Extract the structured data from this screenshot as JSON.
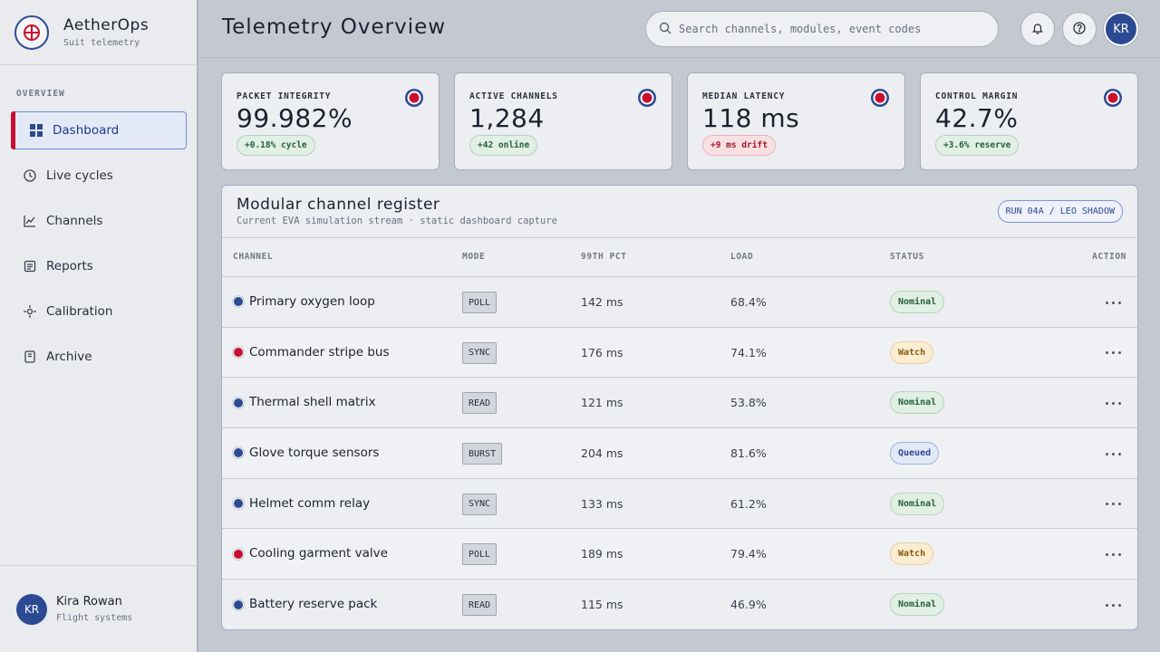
{
  "brand": {
    "name": "AetherOps",
    "subtitle": "Suit telemetry"
  },
  "nav": {
    "section_label": "OVERVIEW",
    "items": [
      {
        "label": "Dashboard",
        "icon": "grid-icon",
        "active": true
      },
      {
        "label": "Live cycles",
        "icon": "clock-icon"
      },
      {
        "label": "Channels",
        "icon": "chart-line-icon"
      },
      {
        "label": "Reports",
        "icon": "report-icon"
      },
      {
        "label": "Calibration",
        "icon": "crosshair-icon"
      },
      {
        "label": "Archive",
        "icon": "archive-icon"
      }
    ]
  },
  "user": {
    "initials": "KR",
    "name": "Kira Rowan",
    "role": "Flight systems"
  },
  "header": {
    "title": "Telemetry Overview",
    "search_placeholder": "Search channels, modules, event codes",
    "avatar_initials": "KR"
  },
  "kpis": [
    {
      "label": "PACKET INTEGRITY",
      "value": "99.982%",
      "badge": "+0.18% cycle",
      "tone": "green"
    },
    {
      "label": "ACTIVE CHANNELS",
      "value": "1,284",
      "badge": "+42 online",
      "tone": "green"
    },
    {
      "label": "MEDIAN LATENCY",
      "value": "118 ms",
      "badge": "+9 ms drift",
      "tone": "red"
    },
    {
      "label": "CONTROL MARGIN",
      "value": "42.7%",
      "badge": "+3.6% reserve",
      "tone": "green"
    }
  ],
  "register": {
    "title": "Modular channel register",
    "subtitle": "Current EVA simulation stream · static dashboard capture",
    "run_chip": "RUN 04A / LEO SHADOW",
    "columns": [
      "CHANNEL",
      "MODE",
      "99TH PCT",
      "LOAD",
      "STATUS",
      "ACTION"
    ],
    "rows": [
      {
        "channel": "Primary oxygen loop",
        "dot": "blue",
        "mode": "POLL",
        "pct": "142 ms",
        "load": "68.4%",
        "status": "Nominal"
      },
      {
        "channel": "Commander stripe bus",
        "dot": "red",
        "mode": "SYNC",
        "pct": "176 ms",
        "load": "74.1%",
        "status": "Watch"
      },
      {
        "channel": "Thermal shell matrix",
        "dot": "blue",
        "mode": "READ",
        "pct": "121 ms",
        "load": "53.8%",
        "status": "Nominal"
      },
      {
        "channel": "Glove torque sensors",
        "dot": "blue",
        "mode": "BURST",
        "pct": "204 ms",
        "load": "81.6%",
        "status": "Queued"
      },
      {
        "channel": "Helmet comm relay",
        "dot": "blue",
        "mode": "SYNC",
        "pct": "133 ms",
        "load": "61.2%",
        "status": "Nominal"
      },
      {
        "channel": "Cooling garment valve",
        "dot": "red",
        "mode": "POLL",
        "pct": "189 ms",
        "load": "79.4%",
        "status": "Watch"
      },
      {
        "channel": "Battery reserve pack",
        "dot": "blue",
        "mode": "READ",
        "pct": "115 ms",
        "load": "46.9%",
        "status": "Nominal"
      }
    ]
  },
  "colors": {
    "accent_blue": "#2c4a94",
    "accent_red": "#c8102e"
  }
}
